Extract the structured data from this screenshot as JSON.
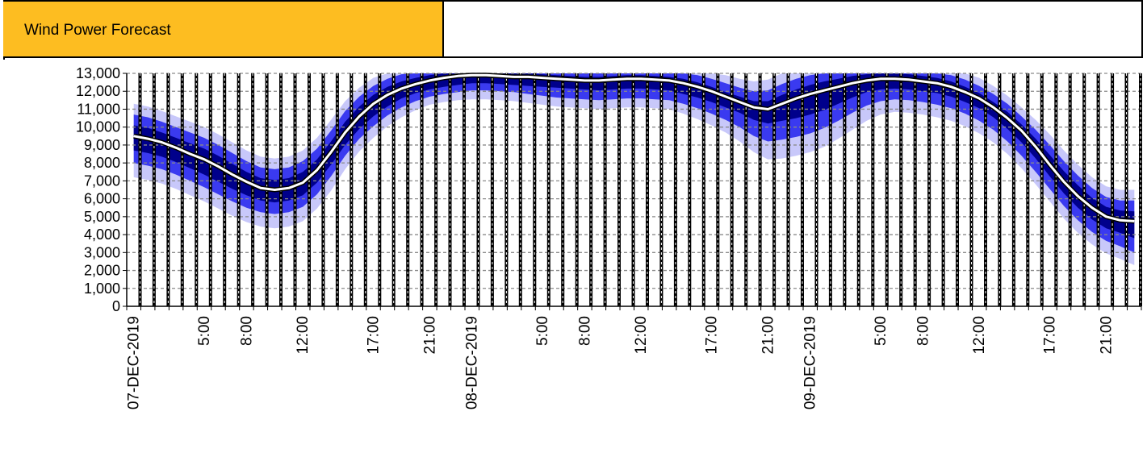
{
  "header": {
    "title": "Wind Power Forecast",
    "title_bg": "#FDBD21",
    "right_text": ""
  },
  "chart_data": {
    "type": "area",
    "title": "Wind Power Forecast",
    "x_unit": "hour",
    "x": [
      "07-DEC-2019 00:00",
      "07-DEC-2019 01:00",
      "07-DEC-2019 02:00",
      "07-DEC-2019 03:00",
      "07-DEC-2019 04:00",
      "07-DEC-2019 05:00",
      "07-DEC-2019 06:00",
      "07-DEC-2019 07:00",
      "07-DEC-2019 08:00",
      "07-DEC-2019 09:00",
      "07-DEC-2019 10:00",
      "07-DEC-2019 11:00",
      "07-DEC-2019 12:00",
      "07-DEC-2019 13:00",
      "07-DEC-2019 14:00",
      "07-DEC-2019 15:00",
      "07-DEC-2019 16:00",
      "07-DEC-2019 17:00",
      "07-DEC-2019 18:00",
      "07-DEC-2019 19:00",
      "07-DEC-2019 20:00",
      "07-DEC-2019 21:00",
      "07-DEC-2019 22:00",
      "07-DEC-2019 23:00",
      "08-DEC-2019 00:00",
      "08-DEC-2019 01:00",
      "08-DEC-2019 02:00",
      "08-DEC-2019 03:00",
      "08-DEC-2019 04:00",
      "08-DEC-2019 05:00",
      "08-DEC-2019 06:00",
      "08-DEC-2019 07:00",
      "08-DEC-2019 08:00",
      "08-DEC-2019 09:00",
      "08-DEC-2019 10:00",
      "08-DEC-2019 11:00",
      "08-DEC-2019 12:00",
      "08-DEC-2019 13:00",
      "08-DEC-2019 14:00",
      "08-DEC-2019 15:00",
      "08-DEC-2019 16:00",
      "08-DEC-2019 17:00",
      "08-DEC-2019 18:00",
      "08-DEC-2019 19:00",
      "08-DEC-2019 20:00",
      "08-DEC-2019 21:00",
      "08-DEC-2019 22:00",
      "08-DEC-2019 23:00",
      "09-DEC-2019 00:00",
      "09-DEC-2019 01:00",
      "09-DEC-2019 02:00",
      "09-DEC-2019 03:00",
      "09-DEC-2019 04:00",
      "09-DEC-2019 05:00",
      "09-DEC-2019 06:00",
      "09-DEC-2019 07:00",
      "09-DEC-2019 08:00",
      "09-DEC-2019 09:00",
      "09-DEC-2019 10:00",
      "09-DEC-2019 11:00",
      "09-DEC-2019 12:00",
      "09-DEC-2019 13:00",
      "09-DEC-2019 14:00",
      "09-DEC-2019 15:00",
      "09-DEC-2019 16:00",
      "09-DEC-2019 17:00",
      "09-DEC-2019 18:00",
      "09-DEC-2019 19:00",
      "09-DEC-2019 20:00",
      "09-DEC-2019 21:00",
      "09-DEC-2019 22:00",
      "09-DEC-2019 23:00"
    ],
    "x_tick_labels": [
      {
        "i": 0,
        "label": "07-DEC-2019"
      },
      {
        "i": 5,
        "label": "5:00"
      },
      {
        "i": 8,
        "label": "8:00"
      },
      {
        "i": 12,
        "label": "12:00"
      },
      {
        "i": 17,
        "label": "17:00"
      },
      {
        "i": 21,
        "label": "21:00"
      },
      {
        "i": 24,
        "label": "08-DEC-2019"
      },
      {
        "i": 29,
        "label": "5:00"
      },
      {
        "i": 32,
        "label": "8:00"
      },
      {
        "i": 36,
        "label": "12:00"
      },
      {
        "i": 41,
        "label": "17:00"
      },
      {
        "i": 45,
        "label": "21:00"
      },
      {
        "i": 48,
        "label": "09-DEC-2019"
      },
      {
        "i": 53,
        "label": "5:00"
      },
      {
        "i": 56,
        "label": "8:00"
      },
      {
        "i": 60,
        "label": "12:00"
      },
      {
        "i": 65,
        "label": "17:00"
      },
      {
        "i": 69,
        "label": "21:00"
      }
    ],
    "ylim": [
      0,
      13000
    ],
    "y_ticks": [
      0,
      1000,
      2000,
      3000,
      4000,
      5000,
      6000,
      7000,
      8000,
      9000,
      10000,
      11000,
      12000,
      13000
    ],
    "y_tick_labels": [
      "0",
      "1,000",
      "2,000",
      "3,000",
      "4,000",
      "5,000",
      "6,000",
      "7,000",
      "8,000",
      "9,000",
      "10,000",
      "11,000",
      "12,000",
      "13,000"
    ],
    "grid": "horizontal dashed",
    "legend": "none",
    "series": [
      {
        "role": "forecast",
        "values": [
          9500,
          9350,
          9150,
          8850,
          8500,
          8200,
          7800,
          7350,
          6950,
          6600,
          6500,
          6600,
          6900,
          7600,
          8600,
          9700,
          10600,
          11300,
          11800,
          12150,
          12400,
          12600,
          12750,
          12850,
          12900,
          12900,
          12850,
          12800,
          12800,
          12750,
          12700,
          12650,
          12600,
          12600,
          12650,
          12700,
          12700,
          12650,
          12600,
          12450,
          12250,
          12000,
          11700,
          11400,
          11100,
          11000,
          11300,
          11600,
          11850,
          12050,
          12250,
          12450,
          12600,
          12700,
          12700,
          12650,
          12550,
          12450,
          12250,
          11950,
          11600,
          11100,
          10500,
          9800,
          8900,
          7900,
          6950,
          6150,
          5500,
          5000,
          4800,
          4750
        ]
      },
      {
        "role": "band_inner_upper",
        "values": [
          10100,
          9950,
          9700,
          9400,
          9100,
          8800,
          8400,
          7950,
          7500,
          7150,
          7050,
          7150,
          7500,
          8200,
          9200,
          10300,
          11150,
          11800,
          12250,
          12550,
          12750,
          12900,
          13000,
          13000,
          13000,
          13000,
          13000,
          13000,
          13000,
          12950,
          12900,
          12850,
          12800,
          12800,
          12850,
          12900,
          12900,
          12850,
          12800,
          12700,
          12500,
          12250,
          11950,
          11700,
          11450,
          11450,
          11800,
          12100,
          12350,
          12550,
          12700,
          12850,
          12950,
          13000,
          13000,
          12950,
          12850,
          12750,
          12550,
          12250,
          11900,
          11400,
          10850,
          10150,
          9350,
          8450,
          7550,
          6750,
          6050,
          5550,
          5350,
          5300
        ]
      },
      {
        "role": "band_inner_lower",
        "values": [
          8700,
          8550,
          8350,
          8050,
          7700,
          7350,
          6950,
          6550,
          6200,
          5900,
          5800,
          5900,
          6200,
          6900,
          7900,
          9000,
          9900,
          10600,
          11150,
          11600,
          11900,
          12100,
          12250,
          12350,
          12450,
          12450,
          12400,
          12350,
          12300,
          12250,
          12200,
          12150,
          12100,
          12050,
          12100,
          12150,
          12150,
          12100,
          12050,
          11850,
          11650,
          11400,
          11100,
          10800,
          10400,
          10200,
          10350,
          10500,
          10700,
          10950,
          11300,
          11650,
          11950,
          12100,
          12150,
          12100,
          12000,
          11900,
          11700,
          11400,
          11050,
          10550,
          9900,
          9150,
          8250,
          7250,
          6300,
          5500,
          4850,
          4350,
          4100,
          3800
        ]
      },
      {
        "role": "band_mid_upper",
        "values": [
          10700,
          10550,
          10300,
          10000,
          9700,
          9400,
          9000,
          8550,
          8100,
          7750,
          7650,
          7750,
          8100,
          8800,
          9800,
          10900,
          11700,
          12300,
          12700,
          12950,
          13000,
          13000,
          13000,
          13000,
          13000,
          13000,
          13000,
          13000,
          13000,
          13000,
          13000,
          13000,
          13000,
          13000,
          13000,
          13000,
          13000,
          13000,
          13000,
          13000,
          12900,
          12700,
          12450,
          12200,
          12000,
          12050,
          12400,
          12700,
          12900,
          13000,
          13000,
          13000,
          13000,
          13000,
          13000,
          13000,
          13000,
          13000,
          12900,
          12650,
          12300,
          11850,
          11300,
          10600,
          9850,
          9000,
          8100,
          7300,
          6600,
          6100,
          5900,
          5900
        ]
      },
      {
        "role": "band_mid_lower",
        "values": [
          8000,
          7850,
          7650,
          7350,
          7000,
          6650,
          6250,
          5850,
          5500,
          5250,
          5150,
          5250,
          5550,
          6250,
          7250,
          8400,
          9350,
          10050,
          10650,
          11100,
          11450,
          11700,
          11850,
          11950,
          12050,
          12050,
          12000,
          11950,
          11850,
          11750,
          11650,
          11600,
          11550,
          11500,
          11550,
          11600,
          11600,
          11550,
          11500,
          11300,
          11050,
          10750,
          10400,
          10000,
          9500,
          9200,
          9300,
          9450,
          9650,
          9950,
          10350,
          10800,
          11200,
          11450,
          11550,
          11500,
          11400,
          11250,
          11050,
          10750,
          10350,
          9850,
          9200,
          8400,
          7500,
          6550,
          5600,
          4800,
          4150,
          3650,
          3350,
          3000
        ]
      },
      {
        "role": "band_outer_upper",
        "values": [
          11300,
          11150,
          10900,
          10600,
          10300,
          10000,
          9600,
          9150,
          8700,
          8350,
          8250,
          8350,
          8700,
          9400,
          10400,
          11450,
          12200,
          12750,
          13000,
          13000,
          13000,
          13000,
          13000,
          13000,
          13000,
          13000,
          13000,
          13000,
          13000,
          13000,
          13000,
          13000,
          13000,
          13000,
          13000,
          13000,
          13000,
          13000,
          13000,
          13000,
          13000,
          13000,
          12900,
          12700,
          12550,
          12650,
          13000,
          13000,
          13000,
          13000,
          13000,
          13000,
          13000,
          13000,
          13000,
          13000,
          13000,
          13000,
          13000,
          13000,
          12750,
          12300,
          11750,
          11100,
          10400,
          9600,
          8700,
          7900,
          7200,
          6700,
          6500,
          6500
        ]
      },
      {
        "role": "band_outer_lower",
        "values": [
          7200,
          7050,
          6850,
          6550,
          6200,
          5850,
          5450,
          5050,
          4700,
          4450,
          4350,
          4450,
          4750,
          5450,
          6450,
          7650,
          8650,
          9400,
          10050,
          10550,
          10950,
          11250,
          11400,
          11500,
          11550,
          11550,
          11500,
          11450,
          11350,
          11250,
          11150,
          11100,
          11050,
          11000,
          11050,
          11100,
          11100,
          11050,
          11000,
          10750,
          10450,
          10100,
          9700,
          9200,
          8600,
          8200,
          8250,
          8400,
          8600,
          8900,
          9350,
          9850,
          10350,
          10700,
          10850,
          10800,
          10700,
          10550,
          10350,
          10050,
          9650,
          9150,
          8500,
          7700,
          6800,
          5850,
          4900,
          4100,
          3450,
          2950,
          2650,
          2300
        ]
      }
    ],
    "colors": {
      "forecast_line": "#FFFFFF",
      "band_inner": "#00008B",
      "band_mid": "#3A3AF0",
      "band_outer": "#C8C8FA",
      "grid": "#8A8A8A",
      "hour_bars": "#000000"
    }
  }
}
